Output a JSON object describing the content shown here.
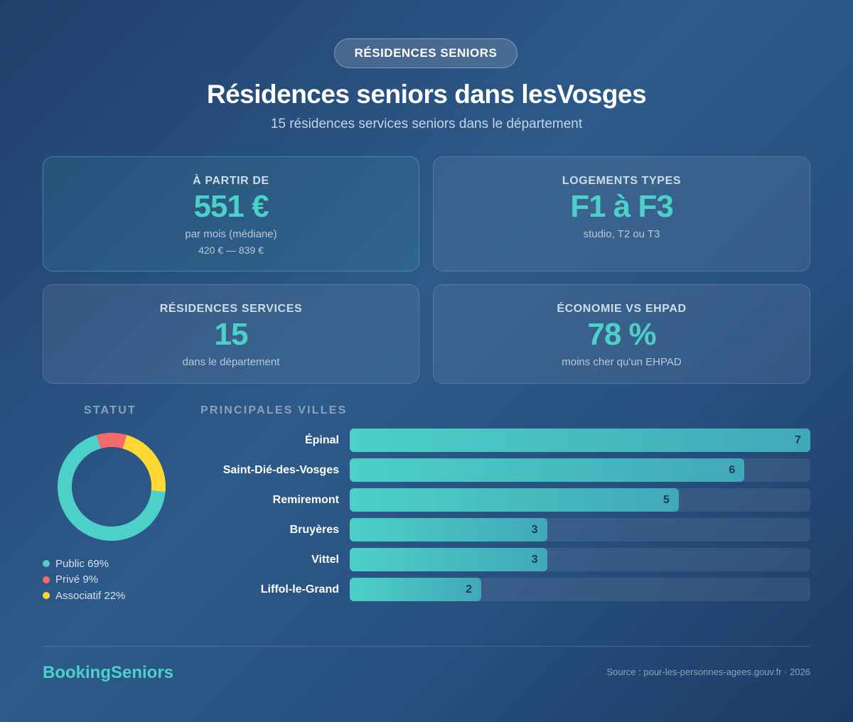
{
  "header": {
    "badge": "RÉSIDENCES SENIORS",
    "title": "Résidences seniors dans lesVosges",
    "subtitle": "15 résidences services seniors dans le département"
  },
  "cards": [
    {
      "label": "À PARTIR DE",
      "value": "551 €",
      "sub": "par mois (médiane)",
      "sub2": "420 € — 839 €"
    },
    {
      "label": "LOGEMENTS TYPES",
      "value": "F1 à F3",
      "sub": "studio, T2 ou T3"
    },
    {
      "label": "RÉSIDENCES SERVICES",
      "value": "15",
      "sub": "dans le département"
    },
    {
      "label": "ÉCONOMIE VS EHPAD",
      "value": "78 %",
      "sub": "moins cher qu'un EHPAD"
    }
  ],
  "colors": {
    "accent": "#4dd0c8",
    "public": "#4dd0c8",
    "prive": "#f46b6b",
    "associatif": "#fdd835"
  },
  "chart_data": [
    {
      "type": "pie",
      "title": "STATUT",
      "categories": [
        "Public",
        "Privé",
        "Associatif"
      ],
      "values": [
        69,
        9,
        22
      ],
      "legend": [
        "Public 69%",
        "Privé 9%",
        "Associatif 22%"
      ],
      "colors": [
        "#4dd0c8",
        "#f46b6b",
        "#fdd835"
      ]
    },
    {
      "type": "bar",
      "title": "PRINCIPALES VILLES",
      "categories": [
        "Épinal",
        "Saint-Dié-des-Vosges",
        "Remiremont",
        "Bruyères",
        "Vittel",
        "Liffol-le-Grand"
      ],
      "values": [
        7,
        6,
        5,
        3,
        3,
        2
      ],
      "ylim": [
        0,
        7
      ]
    }
  ],
  "footer": {
    "brand": "BookingSeniors",
    "source": "Source : pour-les-personnes-agees.gouv.fr · 2026"
  }
}
